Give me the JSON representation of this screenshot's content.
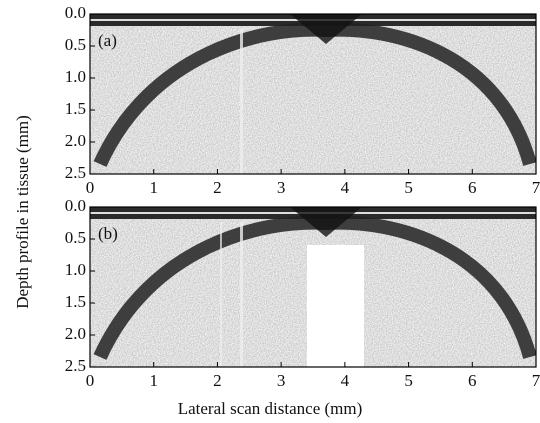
{
  "xlabel": "Lateral scan distance (mm)",
  "ylabel": "Depth profile in tissue (mm)",
  "chart_data": [
    {
      "type": "image",
      "label": "(a)",
      "xlim": [
        0,
        7
      ],
      "ylim": [
        0,
        2.5
      ],
      "y_inverted": true,
      "xticks": [
        0,
        1,
        2,
        3,
        4,
        5,
        6,
        7
      ],
      "yticks": [
        {
          "value": 0,
          "label": "0.0"
        },
        0.5,
        {
          "value": 1,
          "label": "1.0"
        },
        1.5,
        {
          "value": 2,
          "label": "2.0"
        },
        2.5
      ]
    },
    {
      "type": "image",
      "label": "(b)",
      "xlim": [
        0,
        7
      ],
      "ylim": [
        0,
        2.5
      ],
      "y_inverted": true,
      "xticks": [
        0,
        1,
        2,
        3,
        4,
        5,
        6,
        7
      ],
      "yticks": [
        {
          "value": 0,
          "label": "0.0"
        },
        0.5,
        {
          "value": 1,
          "label": "1.0"
        },
        1.5,
        {
          "value": 2,
          "label": "2.0"
        },
        2.5
      ]
    }
  ]
}
